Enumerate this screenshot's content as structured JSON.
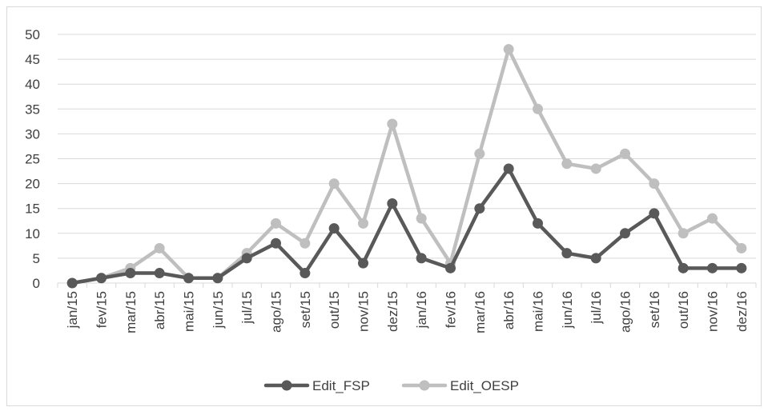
{
  "chart_data": {
    "type": "line",
    "categories": [
      "jan/15",
      "fev/15",
      "mar/15",
      "abr/15",
      "mai/15",
      "jun/15",
      "jul/15",
      "ago/15",
      "set/15",
      "out/15",
      "nov/15",
      "dez/15",
      "jan/16",
      "fev/16",
      "mar/16",
      "abr/16",
      "mai/16",
      "jun/16",
      "jul/16",
      "ago/16",
      "set/16",
      "out/16",
      "nov/16",
      "dez/16"
    ],
    "series": [
      {
        "name": "Edit_FSP",
        "color": "#595959",
        "values": [
          0,
          1,
          2,
          2,
          1,
          1,
          5,
          8,
          2,
          11,
          4,
          16,
          5,
          3,
          15,
          23,
          12,
          6,
          5,
          10,
          14,
          3,
          3,
          3
        ]
      },
      {
        "name": "Edit_OESP",
        "color": "#bfbfbf",
        "values": [
          0,
          1,
          3,
          7,
          1,
          1,
          6,
          12,
          8,
          20,
          12,
          32,
          13,
          4,
          26,
          47,
          35,
          24,
          23,
          26,
          20,
          10,
          13,
          7
        ]
      }
    ],
    "ylim": [
      0,
      50
    ],
    "yticks": [
      0,
      5,
      10,
      15,
      20,
      25,
      30,
      35,
      40,
      45,
      50
    ],
    "grid": true,
    "legend": "bottom",
    "gridline_color": "#d9d9d9"
  }
}
